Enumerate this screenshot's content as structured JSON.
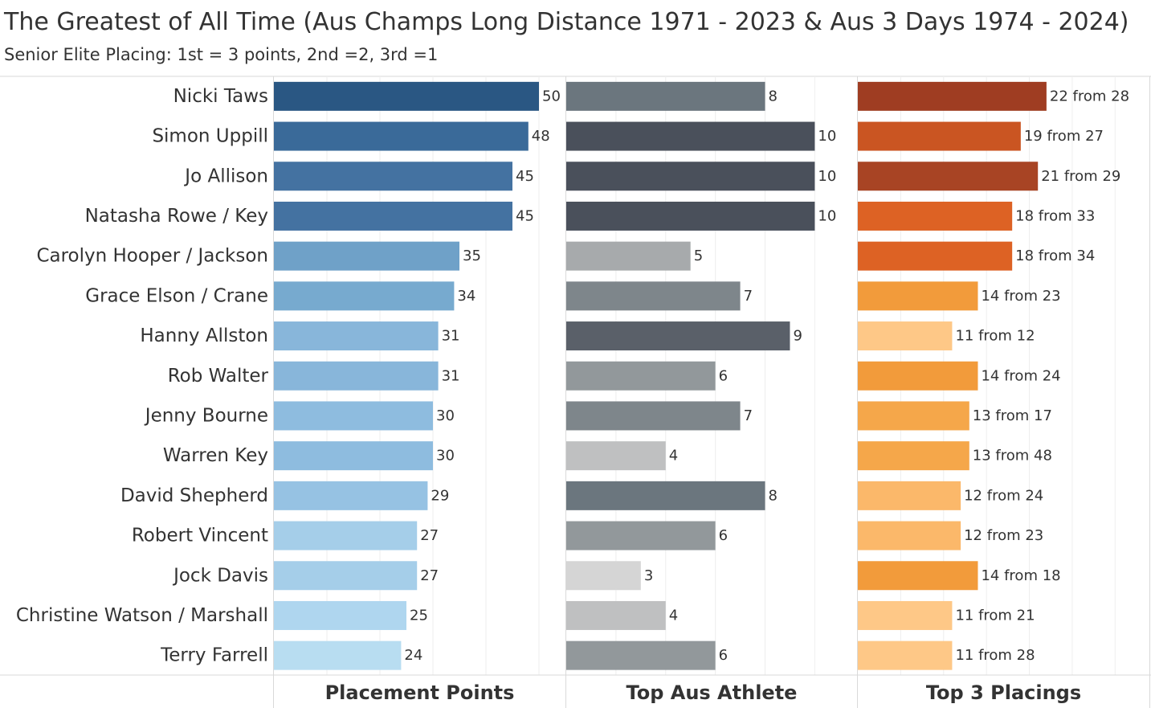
{
  "title": "The Greatest of All Time (Aus Champs Long Distance 1971 - 2023 & Aus 3 Days 1974 - 2024)",
  "subtitle": "Senior Elite Placing: 1st = 3 points, 2nd =2, 3rd =1",
  "chart_data": {
    "type": "bar",
    "orientation": "horizontal",
    "categories": [
      "Nicki Taws",
      "Simon Uppill",
      "Jo Allison",
      "Natasha Rowe / Key",
      "Carolyn Hooper / Jackson",
      "Grace Elson / Crane",
      "Hanny Allston",
      "Rob Walter",
      "Jenny Bourne",
      "Warren Key",
      "David Shepherd",
      "Robert Vincent",
      "Jock Davis",
      "Christine Watson / Marshall",
      "Terry Farrell"
    ],
    "series": [
      {
        "name": "Placement Points",
        "values": [
          50,
          48,
          45,
          45,
          35,
          34,
          31,
          31,
          30,
          30,
          29,
          27,
          27,
          25,
          24
        ],
        "labels": [
          "50",
          "48",
          "45",
          "45",
          "35",
          "34",
          "31",
          "31",
          "30",
          "30",
          "29",
          "27",
          "27",
          "25",
          "24"
        ],
        "xlim": [
          0,
          55
        ],
        "palette": "blue"
      },
      {
        "name": "Top Aus Athlete",
        "values": [
          8,
          10,
          10,
          10,
          5,
          7,
          9,
          6,
          7,
          4,
          8,
          6,
          3,
          4,
          6
        ],
        "labels": [
          "8",
          "10",
          "10",
          "10",
          "5",
          "7",
          "9",
          "6",
          "7",
          "4",
          "8",
          "6",
          "3",
          "4",
          "6"
        ],
        "xlim": [
          0,
          11.7
        ],
        "palette": "gray"
      },
      {
        "name": "Top 3 Placings",
        "values": [
          22,
          19,
          21,
          18,
          18,
          14,
          11,
          14,
          13,
          13,
          12,
          12,
          14,
          11,
          11
        ],
        "totals": [
          28,
          27,
          29,
          33,
          34,
          23,
          12,
          24,
          17,
          48,
          24,
          23,
          18,
          21,
          28
        ],
        "labels": [
          "22 from 28",
          "19 from 27",
          "21 from 29",
          "18 from 33",
          "18 from 34",
          "14 from 23",
          "11 from 12",
          "14 from 24",
          "13 from 17",
          "13 from 48",
          "12 from 24",
          "12 from 23",
          "14 from 18",
          "11 from 21",
          "11 from 28"
        ],
        "xlim": [
          0,
          34
        ],
        "palette": "orange"
      }
    ],
    "colors": {
      "blue": [
        "#2a5783",
        "#3a6a99",
        "#4472a1",
        "#4472a1",
        "#6fa1c8",
        "#77aacf",
        "#88b6da",
        "#88b6da",
        "#8ebcdf",
        "#8ebcdf",
        "#96c2e3",
        "#a5cee9",
        "#a5cee9",
        "#afd6ef",
        "#b8ddf1"
      ],
      "gray": [
        "#6b767e",
        "#4a505b",
        "#4a505b",
        "#4a505b",
        "#a7aaac",
        "#7e868b",
        "#5a6069",
        "#92989b",
        "#7e868b",
        "#bfc0c1",
        "#6b767e",
        "#92989b",
        "#d5d5d5",
        "#bfc0c1",
        "#92989b"
      ],
      "orange": [
        "#9f3d22",
        "#ca5522",
        "#a84424",
        "#dd6224",
        "#dd6224",
        "#f29b3b",
        "#fec887",
        "#f29b3b",
        "#f5a74a",
        "#f5a74a",
        "#fbb86a",
        "#fbb86a",
        "#f29b3b",
        "#fec887",
        "#fec887"
      ],
      "grid": "#eeeeee",
      "axis": "#d9d9d9",
      "text": "#333333"
    },
    "grid": true,
    "legend": "none"
  }
}
